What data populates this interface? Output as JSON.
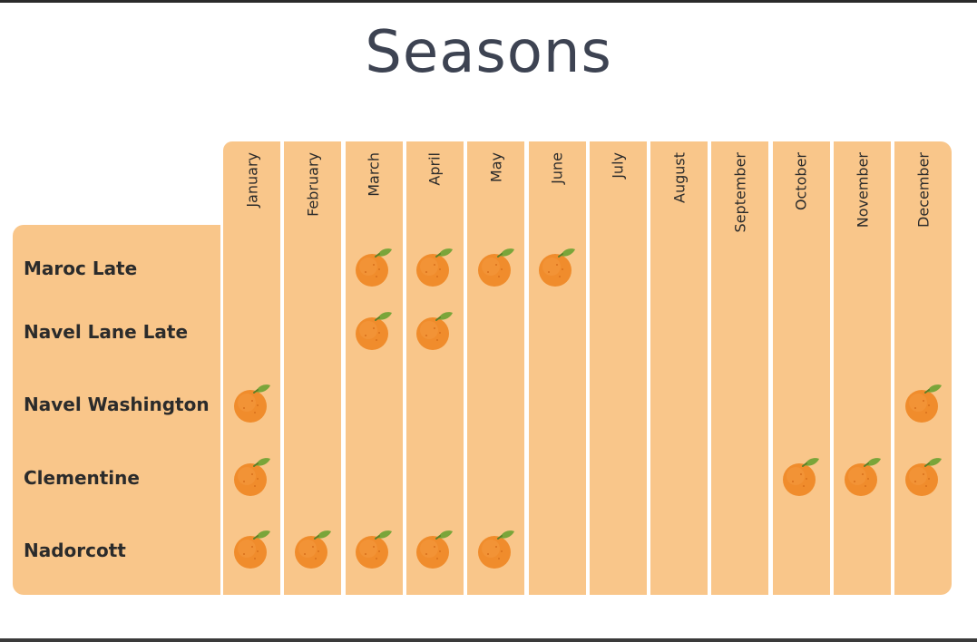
{
  "title": "Seasons",
  "months": [
    "January",
    "February",
    "March",
    "April",
    "May",
    "June",
    "July",
    "August",
    "September",
    "October",
    "November",
    "December"
  ],
  "varieties": [
    {
      "name": "Maroc Late",
      "in_season": [
        3,
        4,
        5,
        6
      ]
    },
    {
      "name": "Navel Lane Late",
      "in_season": [
        3,
        4
      ]
    },
    {
      "name": "Navel Washington",
      "in_season": [
        1,
        12
      ]
    },
    {
      "name": "Clementine",
      "in_season": [
        1,
        10,
        11,
        12
      ]
    },
    {
      "name": "Nadorcott",
      "in_season": [
        1,
        2,
        3,
        4,
        5
      ]
    }
  ],
  "icons": {
    "in_season_marker": "orange-fruit-icon"
  },
  "colors": {
    "panel": "#f9c68a",
    "fruit": "#f08c2c",
    "leaf": "#7aa53a",
    "title": "#3d4352"
  }
}
